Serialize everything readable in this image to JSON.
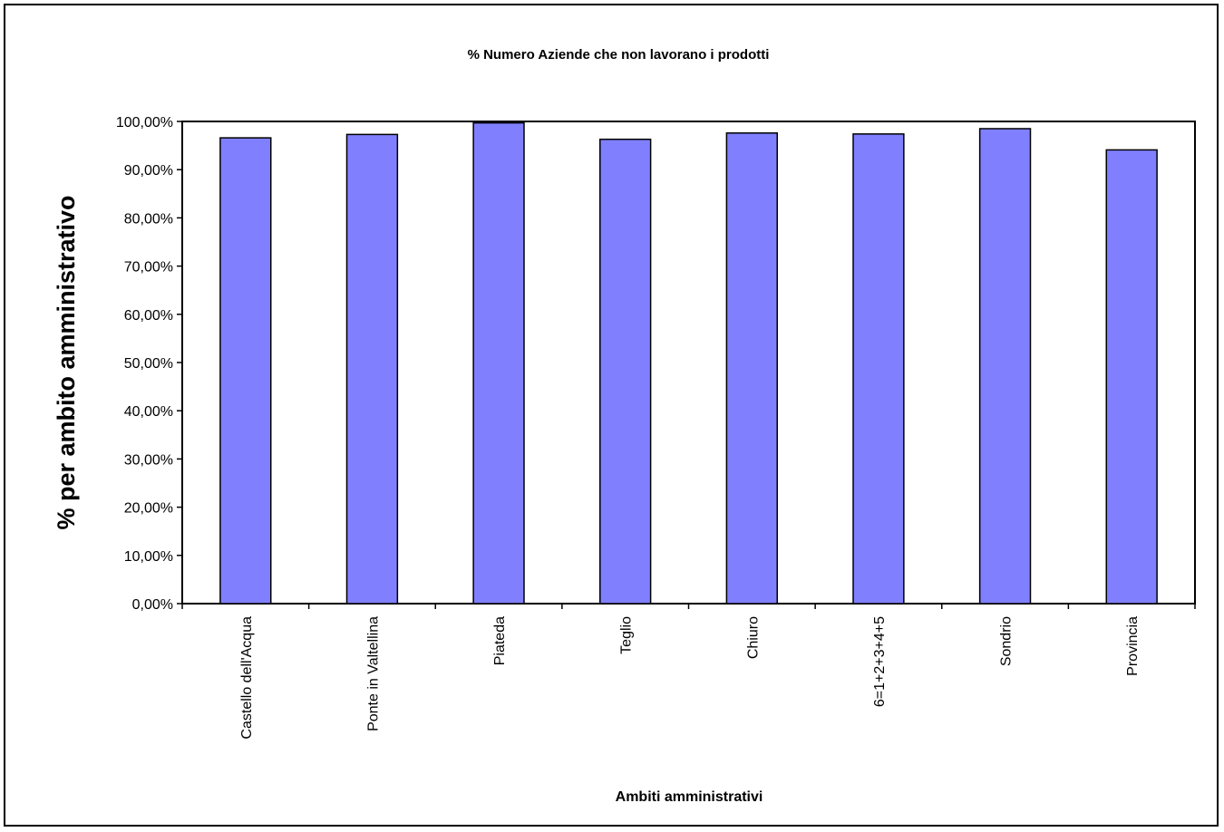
{
  "chart_data": {
    "type": "bar",
    "title": "% Numero Aziende che non lavorano i prodotti",
    "xlabel": "Ambiti amministrativi",
    "ylabel": "% per ambito amministrativo",
    "categories": [
      "Castello dell'Acqua",
      "Ponte in Valtellina",
      "Piateda",
      "Teglio",
      "Chiuro",
      "6=1+2+3+4+5",
      "Sondrio",
      "Provincia"
    ],
    "values": [
      96.6,
      97.3,
      99.7,
      96.3,
      97.6,
      97.4,
      98.5,
      94.1
    ],
    "ylim": [
      0,
      100
    ],
    "yticks": [
      "0,00%",
      "10,00%",
      "20,00%",
      "30,00%",
      "40,00%",
      "50,00%",
      "60,00%",
      "70,00%",
      "80,00%",
      "90,00%",
      "100,00%"
    ],
    "bar_color": "#8080ff",
    "grid": false,
    "legend": "none"
  }
}
